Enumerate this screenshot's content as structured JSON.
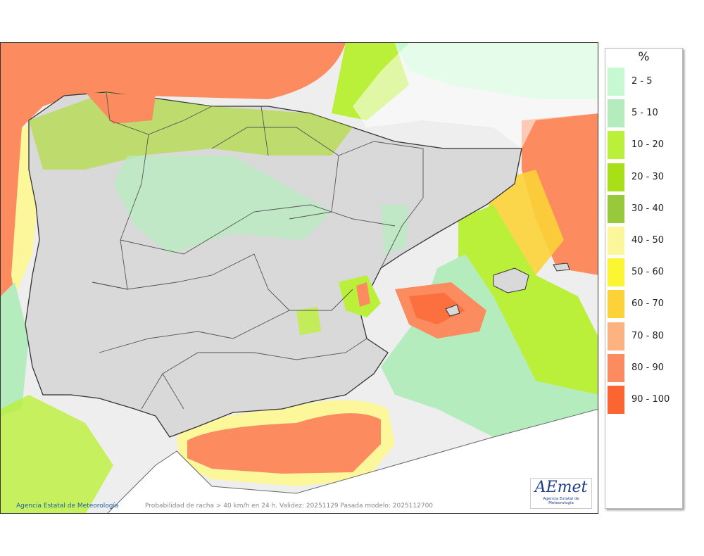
{
  "copyright": "Agencia Estatal de Meteorología",
  "caption": "Probabilidad de racha > 40 km/h en 24 h. Validez: 20251129 Pasada modelo: 2025112700",
  "logo": {
    "name": "AEmet",
    "sub": "Agencia Estatal de Meteorología"
  },
  "legend": {
    "title": "%",
    "items": [
      {
        "label": "2 - 5",
        "color": "#c7f9d0"
      },
      {
        "label": "5 - 10",
        "color": "#b5ecbe"
      },
      {
        "label": "10 - 20",
        "color": "#bbf03a"
      },
      {
        "label": "20 - 30",
        "color": "#a8df16"
      },
      {
        "label": "30 - 40",
        "color": "#97c93a"
      },
      {
        "label": "40 - 50",
        "color": "#fbf79a"
      },
      {
        "label": "50 - 60",
        "color": "#fbf631"
      },
      {
        "label": "60 - 70",
        "color": "#fcd237"
      },
      {
        "label": "70 - 80",
        "color": "#fcb37f"
      },
      {
        "label": "80 - 90",
        "color": "#fc8b5f"
      },
      {
        "label": "90 - 100",
        "color": "#fc6532"
      }
    ]
  }
}
